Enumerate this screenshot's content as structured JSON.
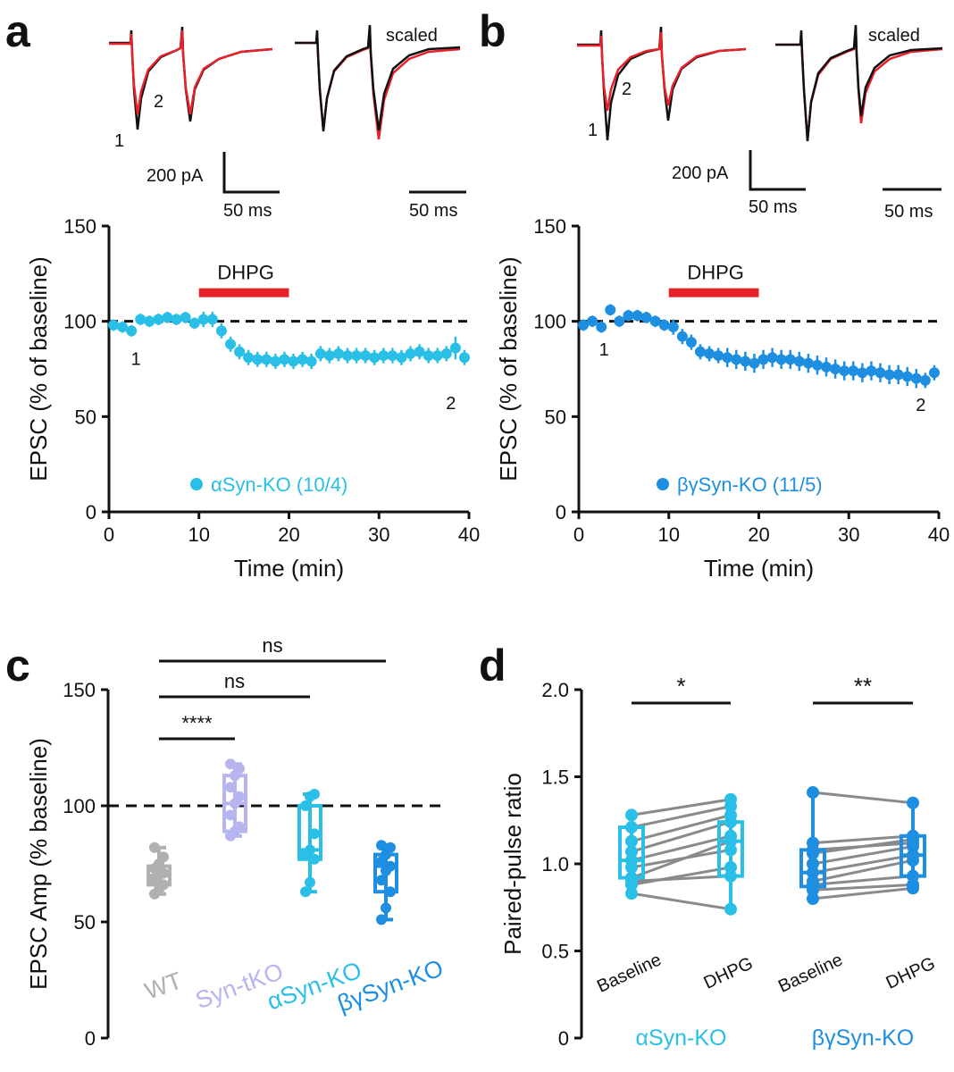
{
  "panels": {
    "a": {
      "label": "a",
      "traces": {
        "marker1": "1",
        "marker2": "2",
        "scaled": "scaled",
        "amp_scale": "200 pA",
        "time_scale_left": "50 ms",
        "time_scale_right": "50 ms"
      }
    },
    "b": {
      "label": "b",
      "traces": {
        "marker1": "1",
        "marker2": "2",
        "scaled": "scaled",
        "amp_scale": "200 pA",
        "time_scale_left": "50 ms",
        "time_scale_right": "50 ms"
      }
    },
    "c": {
      "label": "c"
    },
    "d": {
      "label": "d"
    }
  },
  "colors": {
    "aSyn": "#29bfe6",
    "bgSyn": "#1e8fe0",
    "WT": "#b0b0b0",
    "SyntKO": "#b7b5ef",
    "drug_bar": "#e8202a",
    "trace_black": "#111111",
    "trace_red": "#e8202a",
    "pair_line": "#8a8a8a"
  },
  "chart_data": [
    {
      "id": "a",
      "type": "scatter",
      "title": "",
      "xlabel": "Time (min)",
      "ylabel": "EPSC (% of baseline)",
      "xlim": [
        0,
        40
      ],
      "ylim": [
        0,
        150
      ],
      "xticks": [
        "0",
        "10",
        "20",
        "30",
        "40"
      ],
      "yticks": [
        "0",
        "50",
        "100",
        "150"
      ],
      "reference_line": 100,
      "drug": {
        "label": "DHPG",
        "start": 10,
        "end": 20
      },
      "markers": [
        {
          "label": "1",
          "x": 3,
          "y": 77
        },
        {
          "label": "2",
          "x": 38,
          "y": 54
        }
      ],
      "series": [
        {
          "name": "αSyn-KO (10/4)",
          "x": [
            0.5,
            1.5,
            2.5,
            3.5,
            4.5,
            5.5,
            6.5,
            7.5,
            8.5,
            9.5,
            10.5,
            11.5,
            12.5,
            13.5,
            14.5,
            15.5,
            16.5,
            17.5,
            18.5,
            19.5,
            20.5,
            21.5,
            22.5,
            23.5,
            24.5,
            25.5,
            26.5,
            27.5,
            28.5,
            29.5,
            30.5,
            31.5,
            32.5,
            33.5,
            34.5,
            35.5,
            36.5,
            37.5,
            38.5,
            39.5
          ],
          "y": [
            98,
            97,
            95,
            101,
            100,
            101,
            102,
            101,
            102,
            99,
            101,
            101,
            95,
            88,
            84,
            81,
            80,
            80,
            79,
            80,
            79,
            80,
            79,
            83,
            82,
            83,
            82,
            82,
            82,
            81,
            82,
            82,
            81,
            83,
            84,
            82,
            82,
            83,
            86,
            81
          ],
          "err": [
            3,
            3,
            3,
            3,
            3,
            3,
            3,
            3,
            3,
            3,
            4,
            4,
            4,
            4,
            4,
            4,
            4,
            4,
            4,
            4,
            4,
            4,
            4,
            4,
            4,
            4,
            4,
            4,
            4,
            4,
            4,
            4,
            4,
            4,
            4,
            4,
            4,
            4,
            6,
            4
          ]
        }
      ]
    },
    {
      "id": "b",
      "type": "scatter",
      "title": "",
      "xlabel": "Time (min)",
      "ylabel": "EPSC (% of baseline)",
      "xlim": [
        0,
        40
      ],
      "ylim": [
        0,
        150
      ],
      "xticks": [
        "0",
        "10",
        "20",
        "30",
        "40"
      ],
      "yticks": [
        "0",
        "50",
        "100",
        "150"
      ],
      "reference_line": 100,
      "drug": {
        "label": "DHPG",
        "start": 10,
        "end": 20
      },
      "markers": [
        {
          "label": "1",
          "x": 2.8,
          "y": 82
        },
        {
          "label": "2",
          "x": 38,
          "y": 53
        }
      ],
      "series": [
        {
          "name": "βγSyn-KO (11/5)",
          "x": [
            0.5,
            1.5,
            2.5,
            3.5,
            4.5,
            5.5,
            6.5,
            7.5,
            8.5,
            9.5,
            10.5,
            11.5,
            12.5,
            13.5,
            14.5,
            15.5,
            16.5,
            17.5,
            18.5,
            19.5,
            20.5,
            21.5,
            22.5,
            23.5,
            24.5,
            25.5,
            26.5,
            27.5,
            28.5,
            29.5,
            30.5,
            31.5,
            32.5,
            33.5,
            34.5,
            35.5,
            36.5,
            37.5,
            38.5,
            39.5
          ],
          "y": [
            98,
            100,
            97,
            106,
            100,
            103,
            103,
            102,
            100,
            98,
            97,
            92,
            89,
            84,
            83,
            82,
            81,
            80,
            79,
            78,
            80,
            81,
            80,
            80,
            79,
            78,
            77,
            76,
            75,
            74,
            74,
            73,
            74,
            73,
            72,
            72,
            71,
            70,
            69,
            73
          ],
          "err": [
            3,
            3,
            3,
            3,
            3,
            3,
            3,
            3,
            3,
            3,
            4,
            4,
            4,
            4,
            4,
            4,
            5,
            5,
            5,
            5,
            5,
            5,
            5,
            5,
            5,
            5,
            5,
            5,
            5,
            5,
            5,
            5,
            5,
            5,
            5,
            5,
            5,
            5,
            4,
            4
          ]
        }
      ]
    },
    {
      "id": "c",
      "type": "box",
      "ylabel": "EPSC Amp (% baseline)",
      "ylim": [
        0,
        150
      ],
      "yticks": [
        "0",
        "50",
        "100",
        "150"
      ],
      "reference_line": 100,
      "categories": [
        "WT",
        "Syn-tKO",
        "αSyn-KO",
        "βγSyn-KO"
      ],
      "boxes": [
        {
          "name": "WT",
          "min": 62,
          "q1": 66,
          "median": 70,
          "q3": 74,
          "max": 82,
          "points": [
            62,
            64,
            66,
            68,
            70,
            71,
            73,
            75,
            78,
            82
          ]
        },
        {
          "name": "Syn-tKO",
          "min": 87,
          "q1": 89,
          "median": 101,
          "q3": 113,
          "max": 118,
          "points": [
            87,
            89,
            91,
            96,
            101,
            104,
            108,
            113,
            116,
            118
          ]
        },
        {
          "name": "αSyn-KO",
          "min": 63,
          "q1": 77,
          "median": 81,
          "q3": 100,
          "max": 105,
          "points": [
            63,
            67,
            77,
            79,
            81,
            88,
            100,
            104,
            105
          ]
        },
        {
          "name": "βγSyn-KO",
          "min": 51,
          "q1": 63,
          "median": 74,
          "q3": 79,
          "max": 83,
          "points": [
            51,
            56,
            63,
            68,
            72,
            74,
            76,
            79,
            82,
            83
          ]
        }
      ],
      "significance": [
        {
          "from": "WT",
          "to": "Syn-tKO",
          "label": "****"
        },
        {
          "from": "WT",
          "to": "αSyn-KO",
          "label": "ns"
        },
        {
          "from": "WT",
          "to": "βγSyn-KO",
          "label": "ns"
        }
      ]
    },
    {
      "id": "d",
      "type": "box",
      "ylabel": "Paired-pulse ratio",
      "ylim": [
        0,
        2.0
      ],
      "yticks": [
        "0",
        "0.5",
        "1.0",
        "1.5",
        "2.0"
      ],
      "categories": [
        "Baseline",
        "DHPG",
        "Baseline",
        "DHPG"
      ],
      "groups": [
        "αSyn-KO",
        "βγSyn-KO"
      ],
      "boxes": [
        {
          "name": "αSyn-KO Baseline",
          "min": 0.83,
          "q1": 0.92,
          "median": 1.02,
          "q3": 1.21,
          "max": 1.28
        },
        {
          "name": "αSyn-KO DHPG",
          "min": 0.74,
          "q1": 0.93,
          "median": 1.13,
          "q3": 1.24,
          "max": 1.37
        },
        {
          "name": "βγSyn-KO Baseline",
          "min": 0.8,
          "q1": 0.87,
          "median": 0.95,
          "q3": 1.08,
          "max": 1.41
        },
        {
          "name": "βγSyn-KO DHPG",
          "min": 0.86,
          "q1": 0.93,
          "median": 1.05,
          "q3": 1.16,
          "max": 1.35
        }
      ],
      "pairs": [
        {
          "group": "αSyn-KO",
          "baseline": [
            0.83,
            0.88,
            0.9,
            0.92,
            0.98,
            1.02,
            1.07,
            1.13,
            1.21,
            1.28
          ],
          "dhpg": [
            0.74,
            0.98,
            0.93,
            1.13,
            1.08,
            1.16,
            1.24,
            1.28,
            1.33,
            1.37
          ]
        },
        {
          "group": "βγSyn-KO",
          "baseline": [
            0.8,
            0.85,
            0.88,
            0.9,
            0.95,
            1.0,
            1.06,
            1.08,
            1.12,
            1.41
          ],
          "dhpg": [
            0.86,
            0.88,
            0.93,
            1.02,
            1.05,
            1.1,
            1.14,
            1.12,
            1.16,
            1.35
          ]
        }
      ],
      "significance": [
        {
          "group": "αSyn-KO",
          "label": "*"
        },
        {
          "group": "βγSyn-KO",
          "label": "**"
        }
      ]
    }
  ]
}
